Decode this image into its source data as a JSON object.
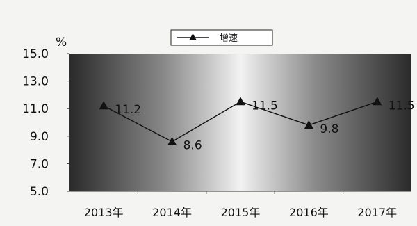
{
  "chart_data": {
    "type": "line",
    "title": "",
    "unit_label": "%",
    "categories": [
      "2013年",
      "2014年",
      "2015年",
      "2016年",
      "2017年"
    ],
    "series": [
      {
        "name": "增速",
        "values": [
          11.2,
          8.6,
          11.5,
          9.8,
          11.5
        ],
        "color": "#111111",
        "marker": "triangle"
      }
    ],
    "data_labels": [
      "11.2",
      "8.6",
      "11.5",
      "9.8",
      "11.5"
    ],
    "y_ticks": [
      "15.0",
      "13.0",
      "11.0",
      "9.0",
      "7.0",
      "5.0"
    ],
    "ylim": [
      5,
      15
    ],
    "grid": false,
    "legend_position": "top-center",
    "plot_background": "gradient dark-to-light-to-dark"
  }
}
